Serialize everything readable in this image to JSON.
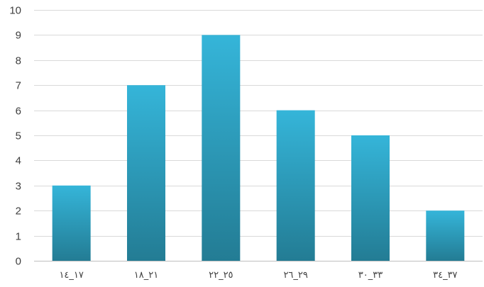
{
  "chart_data": {
    "type": "bar",
    "categories": [
      "١٧_١٤",
      "٢١_١٨",
      "٢٥_٢٢",
      "٢٩_٢٦",
      "٣٣_٣٠",
      "٣٧_٣٤"
    ],
    "values": [
      3,
      7,
      9,
      6,
      5,
      2
    ],
    "title": "",
    "xlabel": "",
    "ylabel": "",
    "ylim": [
      0,
      10
    ],
    "yticks": [
      0,
      1,
      2,
      3,
      4,
      5,
      6,
      7,
      8,
      9,
      10
    ],
    "grid": true,
    "legend": "none",
    "colors": {
      "bar_top": "#35b5d9",
      "bar_bottom": "#237c94"
    }
  }
}
